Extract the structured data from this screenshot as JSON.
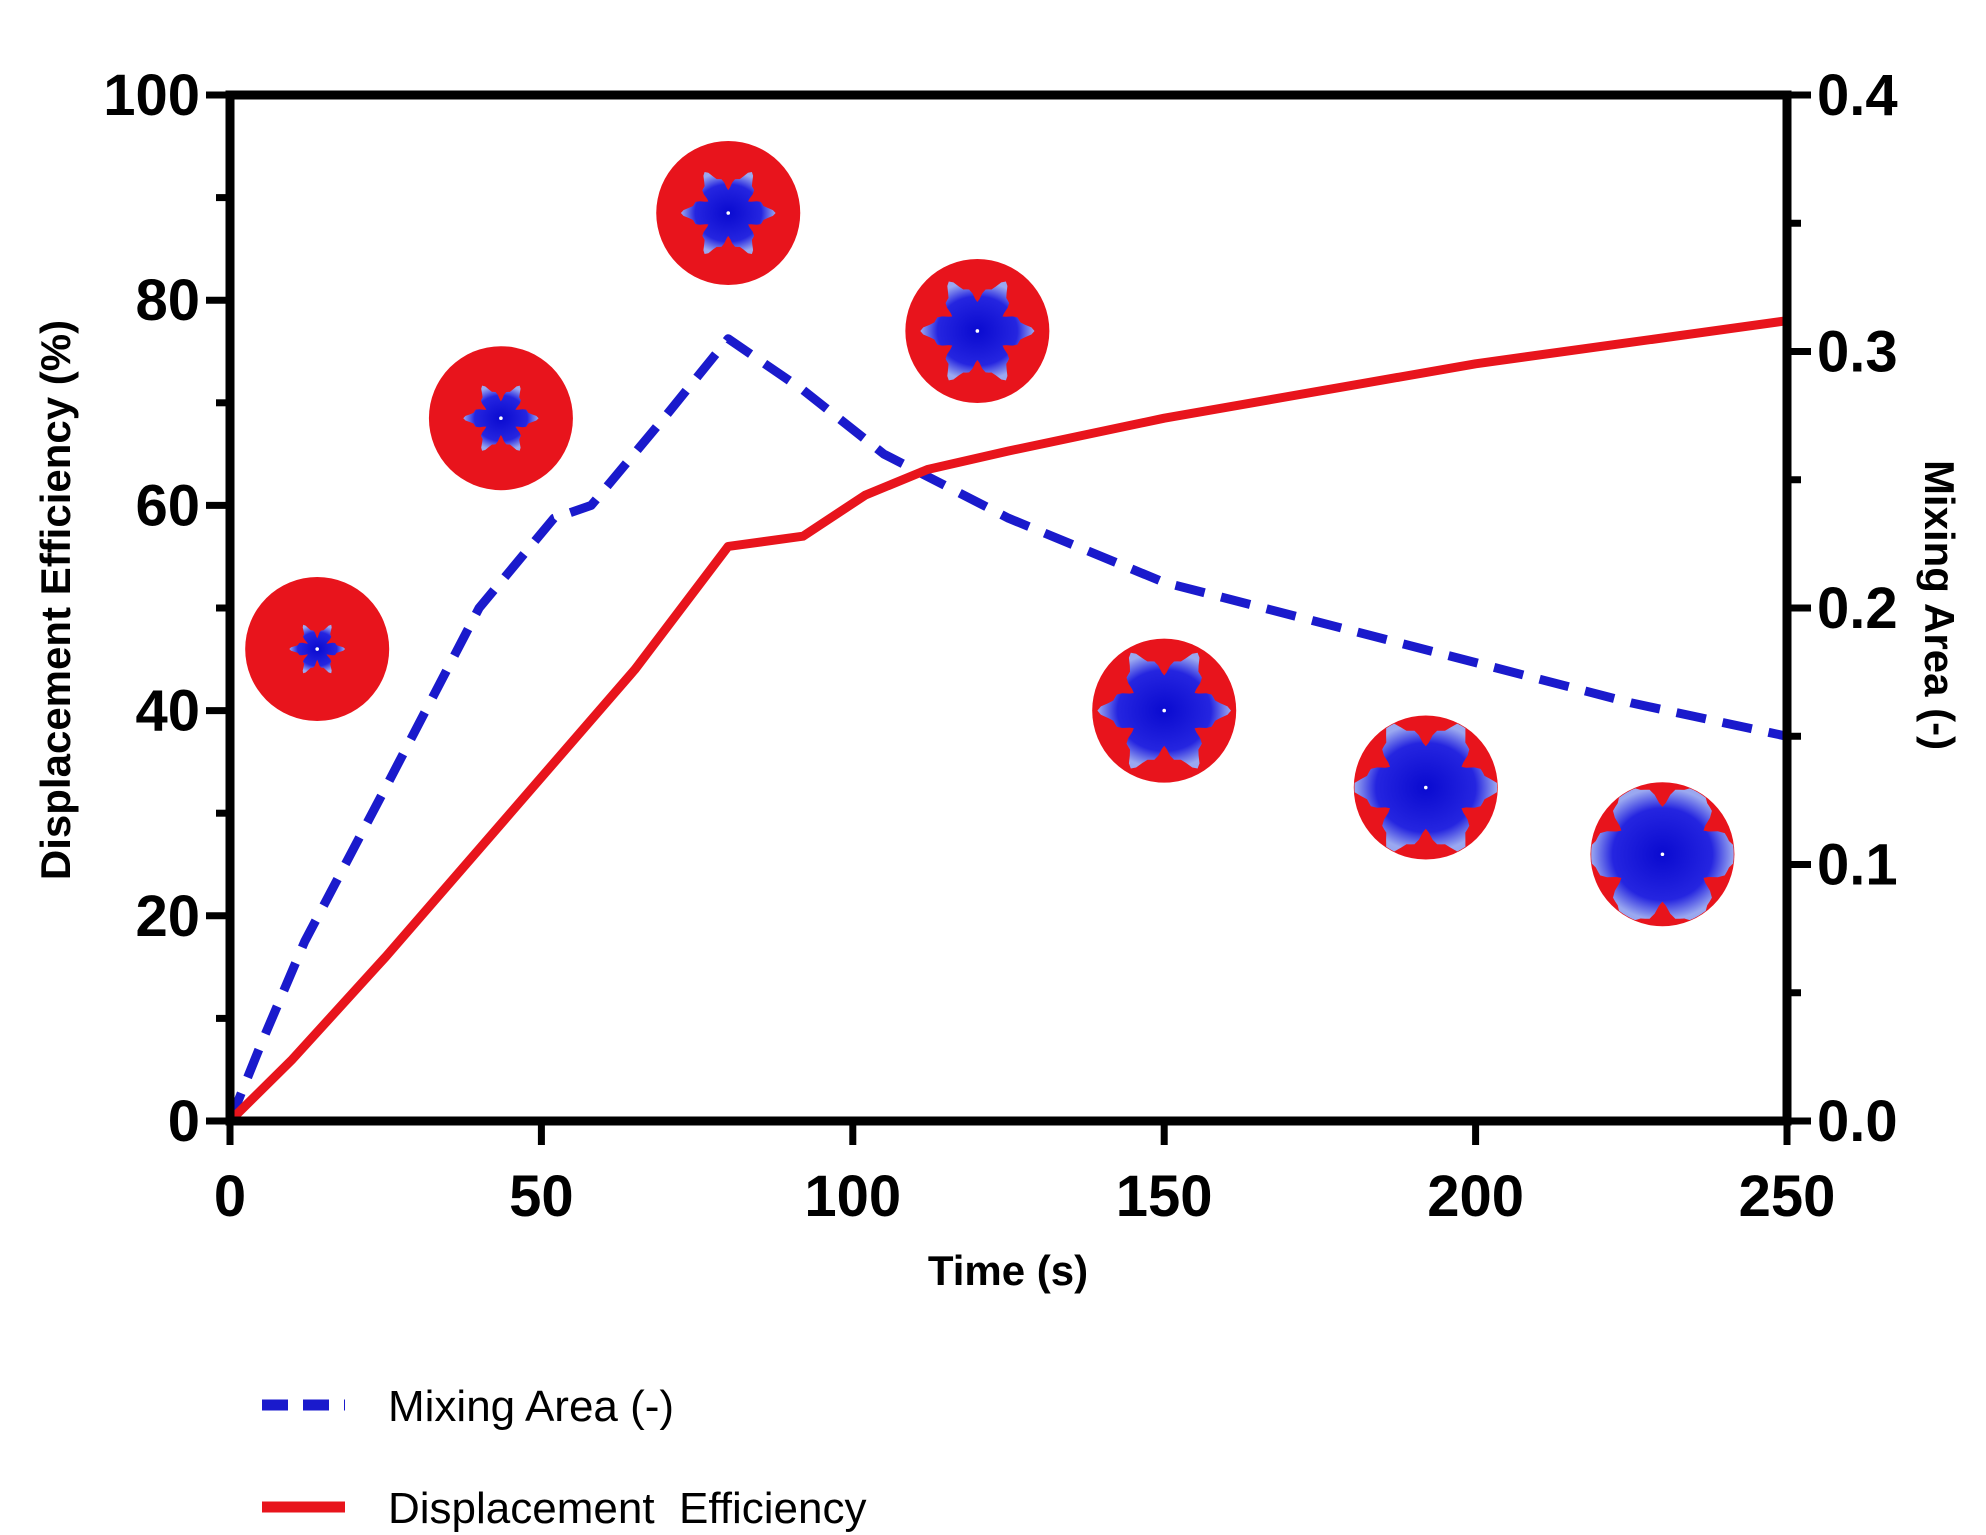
{
  "chart_data": {
    "type": "line",
    "title": "",
    "xlabel": "Time (s)",
    "ylabel": "Displacement Efficiency (%)",
    "y2label": "Mixing Area (-)",
    "xlim": [
      0,
      250
    ],
    "ylim": [
      0,
      100
    ],
    "y2lim": [
      0,
      0.4
    ],
    "xticks": [
      "0",
      "50",
      "100",
      "150",
      "200",
      "250"
    ],
    "yticks": [
      "0",
      "20",
      "40",
      "60",
      "80",
      "100"
    ],
    "y2ticks": [
      "0.0",
      "0.1",
      "0.2",
      "0.3",
      "0.4"
    ],
    "legend_position": "bottom-left",
    "series": [
      {
        "name": "Mixing Area (-)",
        "axis": "right",
        "style": "dashed",
        "color": "#1a1acc",
        "x": [
          0,
          5,
          12,
          25,
          40,
          52,
          58,
          70,
          80,
          92,
          105,
          125,
          150,
          190,
          225,
          250
        ],
        "y": [
          0.0,
          0.03,
          0.07,
          0.13,
          0.2,
          0.235,
          0.24,
          0.275,
          0.305,
          0.285,
          0.26,
          0.235,
          0.21,
          0.185,
          0.163,
          0.15
        ]
      },
      {
        "name": "Displacement  Efficiency",
        "axis": "left",
        "style": "solid",
        "color": "#e8141c",
        "x": [
          0,
          10,
          25,
          45,
          65,
          80,
          92,
          102,
          112,
          125,
          150,
          200,
          250
        ],
        "y": [
          0,
          6,
          16,
          30,
          44,
          56,
          57,
          61,
          63.5,
          65.3,
          68.5,
          73.8,
          78
        ]
      }
    ],
    "inset_images": [
      {
        "name": "snapshot-1",
        "x": 14,
        "y": 46
      },
      {
        "name": "snapshot-2",
        "x": 43.5,
        "y": 68.5
      },
      {
        "name": "snapshot-3",
        "x": 80,
        "y": 88.5
      },
      {
        "name": "snapshot-4",
        "x": 120,
        "y": 77
      },
      {
        "name": "snapshot-5",
        "x": 150,
        "y": 40
      },
      {
        "name": "snapshot-6",
        "x": 192,
        "y": 32.5
      },
      {
        "name": "snapshot-7",
        "x": 230,
        "y": 26
      }
    ]
  },
  "colors": {
    "displacing_fluid": "#1515d6",
    "displaced_fluid": "#e8141c"
  }
}
